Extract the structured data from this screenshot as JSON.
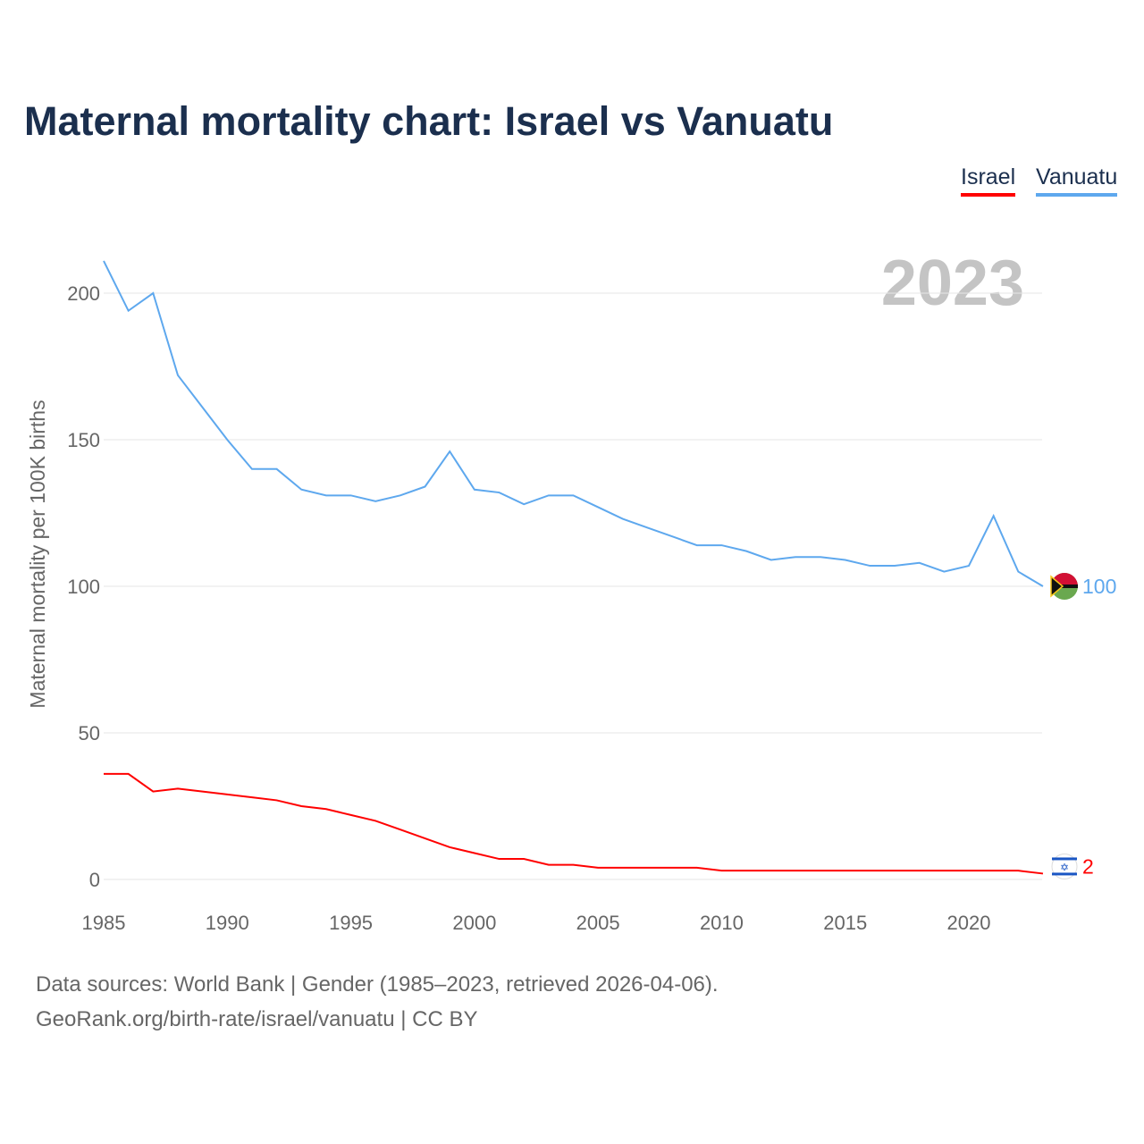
{
  "title": "Maternal mortality chart: Israel vs Vanuatu",
  "year_label": "2023",
  "source_line1": "Data sources: World Bank | Gender (1985–2023, retrieved 2026-04-06).",
  "source_line2": "GeoRank.org/birth-rate/israel/vanuatu | CC BY",
  "chart_data": {
    "type": "line",
    "title": "Maternal mortality chart: Israel vs Vanuatu",
    "xlabel": "",
    "ylabel": "Maternal mortality per 100K births",
    "xlim": [
      1985,
      2023
    ],
    "ylim": [
      0,
      215
    ],
    "xticks": [
      1985,
      1990,
      1995,
      2000,
      2005,
      2010,
      2015,
      2020
    ],
    "yticks": [
      0,
      50,
      100,
      150,
      200
    ],
    "grid": true,
    "legend_position": "top-right",
    "x": [
      1985,
      1986,
      1987,
      1988,
      1989,
      1990,
      1991,
      1992,
      1993,
      1994,
      1995,
      1996,
      1997,
      1998,
      1999,
      2000,
      2001,
      2002,
      2003,
      2004,
      2005,
      2006,
      2007,
      2008,
      2009,
      2010,
      2011,
      2012,
      2013,
      2014,
      2015,
      2016,
      2017,
      2018,
      2019,
      2020,
      2021,
      2022,
      2023
    ],
    "series": [
      {
        "name": "Israel",
        "color": "#ff0000",
        "end_label": "2",
        "values": [
          36,
          36,
          30,
          31,
          30,
          29,
          28,
          27,
          25,
          24,
          22,
          20,
          17,
          14,
          11,
          9,
          7,
          7,
          5,
          5,
          4,
          4,
          4,
          4,
          4,
          3,
          3,
          3,
          3,
          3,
          3,
          3,
          3,
          3,
          3,
          3,
          3,
          3,
          2
        ]
      },
      {
        "name": "Vanuatu",
        "color": "#5ea8ee",
        "end_label": "100",
        "values": [
          211,
          194,
          200,
          172,
          161,
          150,
          140,
          140,
          133,
          131,
          131,
          129,
          131,
          134,
          146,
          133,
          132,
          128,
          131,
          131,
          127,
          123,
          120,
          117,
          114,
          114,
          112,
          109,
          110,
          110,
          109,
          107,
          107,
          108,
          105,
          107,
          124,
          105,
          100
        ]
      }
    ]
  }
}
